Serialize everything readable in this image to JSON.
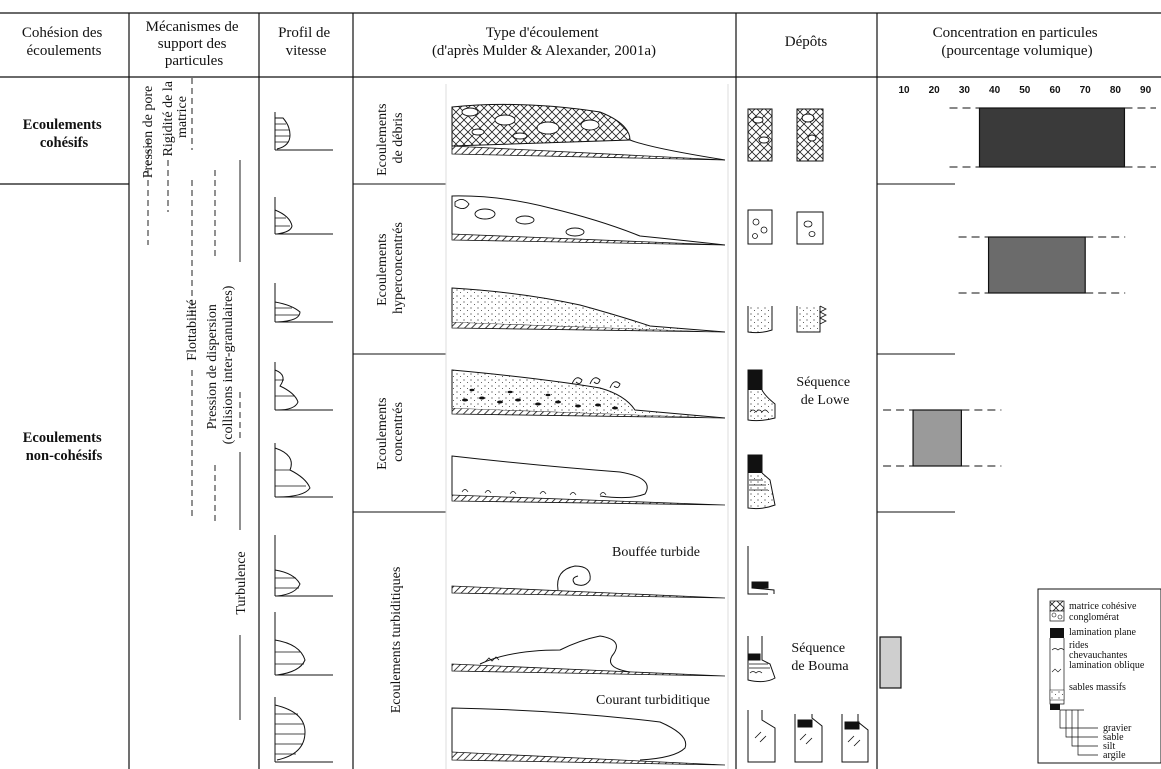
{
  "headers": {
    "cohesion": [
      "Cohésion des",
      "écoulements"
    ],
    "mecanismes": [
      "Mécanismes de",
      "support des",
      "particules"
    ],
    "profil": [
      "Profil de",
      "vitesse"
    ],
    "type": [
      "Type d'écoulement",
      "(d'après Mulder & Alexander, 2001a)"
    ],
    "depots": "Dépôts",
    "concentration": [
      "Concentration en particules",
      "(pourcentage volumique)"
    ]
  },
  "cohesion_labels": {
    "cohesifs": [
      "Ecoulements",
      "cohésifs"
    ],
    "non_cohesifs": [
      "Ecoulements",
      "non-cohésifs"
    ]
  },
  "mechanisms": {
    "pore": "Pression de pore",
    "rigidite": [
      "Rigidité de la",
      "matrice"
    ],
    "flottabilite": "Flottabilité",
    "dispersion": [
      "Pression de dispersion",
      "(collisions inter-granulaires)"
    ],
    "turbulence": "Turbulence"
  },
  "flow_types": {
    "debris": [
      "Ecoulements",
      "de débris"
    ],
    "hyper": [
      "Ecoulements",
      "hyperconcentrés"
    ],
    "concentres": [
      "Ecoulements",
      "concentrés"
    ],
    "turbiditiques": "Ecoulements turbiditiques"
  },
  "annotations": {
    "bouffee": "Bouffée turbide",
    "courant": "Courant turbiditique",
    "lowe": [
      "Séquence",
      "de Lowe"
    ],
    "bouma": [
      "Séquence",
      "de Bouma"
    ]
  },
  "concentration_axis": {
    "ticks": [
      "10",
      "20",
      "30",
      "40",
      "50",
      "60",
      "70",
      "80",
      "90"
    ],
    "bars": [
      {
        "label": "Ecoulements de débris",
        "from": 35,
        "to": 83,
        "color": "#3a3a3a"
      },
      {
        "label": "Ecoulements hyperconcentrés",
        "from": 38,
        "to": 70,
        "color": "#6b6b6b"
      },
      {
        "label": "Ecoulements concentrés",
        "from": 13,
        "to": 29,
        "color": "#9a9a9a"
      },
      {
        "label": "Ecoulements turbiditiques",
        "from": 0,
        "to": 9,
        "color": "#cfcfcf"
      }
    ]
  },
  "legend": {
    "items": [
      "matrice cohésive",
      "conglomérat",
      "lamination plane",
      "rides",
      "chevauchantes",
      "lamination oblique",
      "sables massifs"
    ],
    "grain": [
      "gravier",
      "sable",
      "silt",
      "argile"
    ]
  }
}
